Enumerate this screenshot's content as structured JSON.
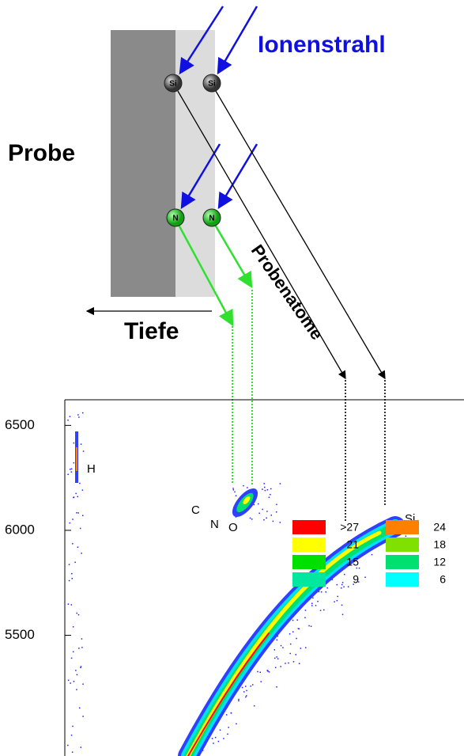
{
  "sample": {
    "beam_label": "Ionenstrahl",
    "sample_label": "Probe",
    "depth_label": "Tiefe",
    "recoil_label": "Probenatome",
    "atoms": [
      "Si",
      "Si",
      "N",
      "N"
    ]
  },
  "plot": {
    "ylim": [
      4925,
      6622
    ],
    "yticks": [
      6500,
      6000,
      5500
    ],
    "element_labels": [
      "H",
      "C",
      "N",
      "O",
      "Si"
    ],
    "legend": [
      {
        "label": ">27",
        "color": "#ff0000"
      },
      {
        "label": "24",
        "color": "#ff8000"
      },
      {
        "label": "21",
        "color": "#ffff00"
      },
      {
        "label": "18",
        "color": "#80e000"
      },
      {
        "label": "15",
        "color": "#00e000"
      },
      {
        "label": "12",
        "color": "#00e070"
      },
      {
        "label": "9",
        "color": "#00e8a0"
      },
      {
        "label": "6",
        "color": "#00ffff"
      }
    ]
  }
}
